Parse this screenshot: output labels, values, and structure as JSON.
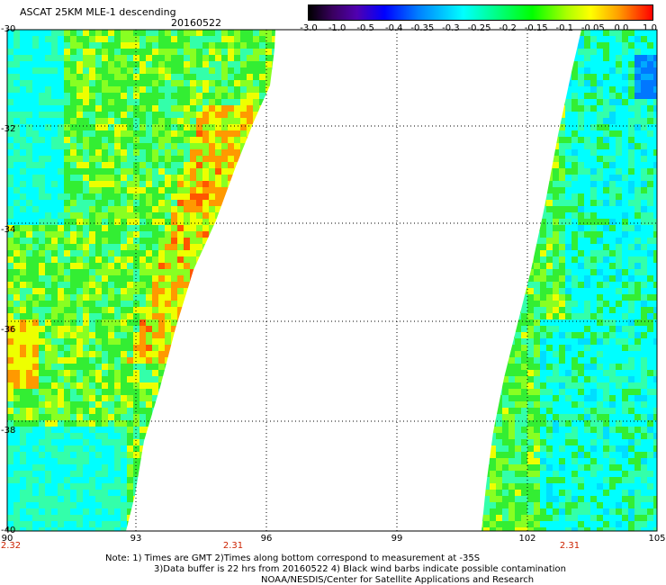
{
  "header": {
    "title": "ASCAT 25KM MLE-1 descending",
    "date": "20160522"
  },
  "colorbar": {
    "labels": [
      "-3.0",
      "-1.0",
      "-0.5",
      "-0.4",
      "-0.35",
      "-0.3",
      "-0.25",
      "-0.2",
      "-0.15",
      "-0.1",
      "-0.05",
      "0.0",
      "1.0"
    ]
  },
  "axes": {
    "lat_labels": [
      "-30",
      "-32",
      "-34",
      "-36",
      "-38",
      "-40"
    ],
    "lon_labels": [
      "90",
      "93",
      "96",
      "99",
      "102",
      "105"
    ],
    "time_labels": [
      "2.32",
      "2.31",
      "2.31"
    ]
  },
  "notes": {
    "line1": "Note: 1) Times are GMT 2)Times along bottom correspond to measurement at -35S",
    "line2": "3)Data buffer is 22 hrs from 20160522 4) Black wind barbs indicate possible contamination",
    "line3": "NOAA/NESDIS/Center for Satellite Applications and Research"
  },
  "map": {
    "lat_range": [
      -40,
      -30
    ],
    "lon_range": [
      90,
      105
    ],
    "grid": "dotted",
    "swath_colors": {
      "cyan": "#00ffff",
      "aqua_green": "#33ffaa",
      "green": "#33ee33",
      "light_green": "#88ff22",
      "yellow": "#eeff00",
      "orange": "#ff9900",
      "red_orange": "#ff5500"
    }
  }
}
